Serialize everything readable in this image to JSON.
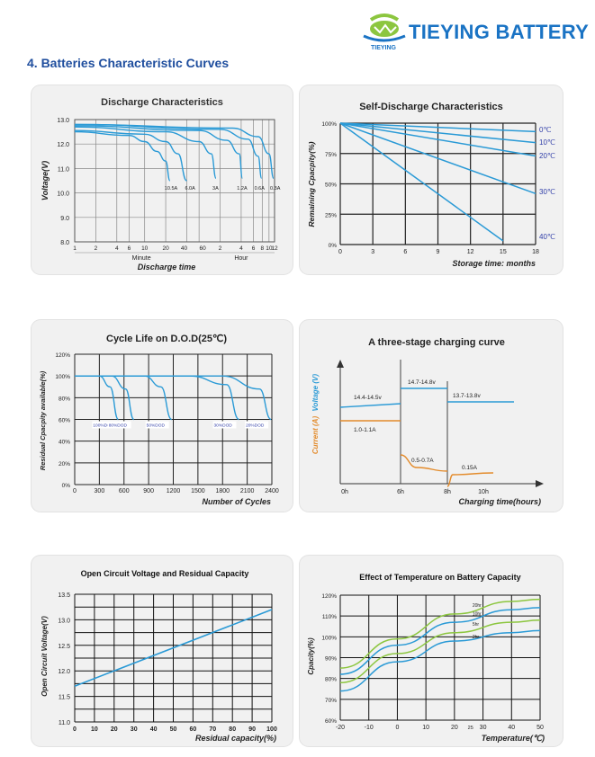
{
  "header": {
    "brand": "TIEYING BATTERY",
    "logo_text": "TIEYING",
    "section_title": "4.  Batteries Characteristic Curves"
  },
  "colors": {
    "curve": "#2a9ad6",
    "orange": "#e38b2b",
    "green": "#8cc63f",
    "grid": "#111111",
    "brand": "#1a73c4",
    "label_blue": "#2f3da8"
  },
  "chart_data": [
    {
      "type": "line",
      "title": "Discharge Characteristics",
      "xlabel": "Discharge time",
      "ylabel": "Voltage(V)",
      "ylim": [
        8.0,
        13.0
      ],
      "yticks": [
        "13.0",
        "12.0",
        "11.0",
        "10.0",
        "9.0",
        "8.0"
      ],
      "xticks": [
        "1",
        "2",
        "4",
        "6",
        "10",
        "20",
        "40",
        "60",
        "2",
        "4",
        "6",
        "8",
        "10",
        "12"
      ],
      "x_groups": [
        "Minute",
        "Hour"
      ],
      "series": [
        {
          "name": "10.5A",
          "points": [
            [
              1,
              12.5
            ],
            [
              6,
              12.35
            ],
            [
              10,
              12.1
            ],
            [
              15,
              11.7
            ],
            [
              20,
              11.3
            ],
            [
              23,
              10.5
            ]
          ]
        },
        {
          "name": "6.0A",
          "points": [
            [
              1,
              12.55
            ],
            [
              10,
              12.4
            ],
            [
              20,
              12.1
            ],
            [
              30,
              11.6
            ],
            [
              40,
              10.5
            ]
          ]
        },
        {
          "name": "3A",
          "points": [
            [
              1,
              12.7
            ],
            [
              20,
              12.5
            ],
            [
              60,
              12.1
            ],
            [
              90,
              11.6
            ],
            [
              105,
              10.6
            ]
          ]
        },
        {
          "name": "1.2A",
          "points": [
            [
              1,
              12.75
            ],
            [
              60,
              12.55
            ],
            [
              150,
              12.15
            ],
            [
              225,
              11.6
            ],
            [
              250,
              10.6
            ]
          ]
        },
        {
          "name": "0.6A",
          "points": [
            [
              1,
              12.8
            ],
            [
              120,
              12.6
            ],
            [
              300,
              12.2
            ],
            [
              420,
              11.5
            ],
            [
              470,
              10.6
            ]
          ]
        },
        {
          "name": "0.3A",
          "points": [
            [
              1,
              12.8
            ],
            [
              180,
              12.65
            ],
            [
              420,
              12.3
            ],
            [
              600,
              11.6
            ],
            [
              700,
              10.6
            ]
          ]
        }
      ],
      "annotations": [
        "10.5A",
        "6.0A",
        "3A",
        "1.2A",
        "0.6A",
        "0.3A"
      ]
    },
    {
      "type": "line",
      "title": "Self-Discharge Characteristics",
      "xlabel": "Storage time: months",
      "ylabel": "Remaining Cpacpity(%)",
      "xlim": [
        0,
        18
      ],
      "ylim": [
        0,
        100
      ],
      "yticks": [
        "100%",
        "75%",
        "50%",
        "25%",
        "0%"
      ],
      "xticks": [
        "0",
        "3",
        "6",
        "9",
        "12",
        "15",
        "18"
      ],
      "series": [
        {
          "name": "0℃",
          "points": [
            [
              0,
              100
            ],
            [
              18,
              93
            ]
          ]
        },
        {
          "name": "10℃",
          "points": [
            [
              0,
              100
            ],
            [
              18,
              84
            ]
          ]
        },
        {
          "name": "20℃",
          "points": [
            [
              0,
              100
            ],
            [
              18,
              73
            ]
          ]
        },
        {
          "name": "30℃",
          "points": [
            [
              0,
              100
            ],
            [
              18,
              42
            ]
          ]
        },
        {
          "name": "40℃",
          "points": [
            [
              0,
              100
            ],
            [
              15,
              3
            ]
          ]
        }
      ]
    },
    {
      "type": "line",
      "title": "Cycle Life on D.O.D(25℃)",
      "xlabel": "Number of Cycles",
      "ylabel": "Residual Cpacpity available(%)",
      "xlim": [
        0,
        2400
      ],
      "ylim": [
        0,
        120
      ],
      "yticks": [
        "120%",
        "100%",
        "80%",
        "60%",
        "40%",
        "20%",
        "0%"
      ],
      "xticks": [
        "0",
        "300",
        "600",
        "900",
        "1200",
        "1500",
        "1800",
        "2100",
        "2400"
      ],
      "series": [
        {
          "name": "100%DOD",
          "points": [
            [
              0,
              100
            ],
            [
              300,
              100
            ],
            [
              430,
              90
            ],
            [
              530,
              60
            ]
          ]
        },
        {
          "name": "80%DOD",
          "points": [
            [
              0,
              100
            ],
            [
              450,
              100
            ],
            [
              620,
              88
            ],
            [
              720,
              60
            ]
          ]
        },
        {
          "name": "50%DOD",
          "points": [
            [
              0,
              100
            ],
            [
              850,
              100
            ],
            [
              1050,
              90
            ],
            [
              1180,
              60
            ]
          ]
        },
        {
          "name": "30%DOD",
          "points": [
            [
              0,
              100
            ],
            [
              1400,
              100
            ],
            [
              1850,
              92
            ],
            [
              2000,
              60
            ]
          ]
        },
        {
          "name": "20%DOD",
          "points": [
            [
              0,
              100
            ],
            [
              1800,
              100
            ],
            [
              2250,
              88
            ],
            [
              2390,
              60
            ]
          ]
        }
      ]
    },
    {
      "type": "line",
      "title": "A three-stage charging curve",
      "xlabel": "Charging time(hours)",
      "ylabel_voltage": "Voltage (V)",
      "ylabel_current": "Current (A)",
      "xticks": [
        "0h",
        "6h",
        "8h",
        "10h"
      ],
      "voltage_labels": [
        "14.4-14.5v",
        "14.7-14.8v",
        "13.7-13.8v"
      ],
      "current_labels": [
        "1.0-1.1A",
        "0.5-0.7A",
        "0.15A"
      ]
    },
    {
      "type": "line",
      "title": "Open Circuit Voltage and Residual Capacity",
      "xlabel": "Residual capacity(%)",
      "ylabel": "Open Circuit Voltage(V)",
      "xlim": [
        0,
        100
      ],
      "ylim": [
        11.0,
        13.5
      ],
      "yticks": [
        "13.5",
        "13.0",
        "12.5",
        "12.0",
        "11.5",
        "11.0"
      ],
      "xticks": [
        "0",
        "10",
        "20",
        "30",
        "40",
        "50",
        "60",
        "70",
        "80",
        "90",
        "100"
      ],
      "series": [
        {
          "points": [
            [
              0,
              11.7
            ],
            [
              100,
              13.2
            ]
          ]
        }
      ]
    },
    {
      "type": "line",
      "title": "Effect of Temperature on Battery Capacity",
      "xlabel": "Temperature(℃)",
      "ylabel": "Cpacity(%)",
      "xlim": [
        -20,
        50
      ],
      "ylim": [
        60,
        120
      ],
      "yticks": [
        "120%",
        "110%",
        "100%",
        "90%",
        "80%",
        "70%",
        "60%"
      ],
      "xticks": [
        "-20",
        "-10",
        "0",
        "10",
        "20",
        "25",
        "30",
        "40",
        "50"
      ],
      "series": [
        {
          "name": "20hr",
          "points": [
            [
              -20,
              85
            ],
            [
              0,
              99
            ],
            [
              20,
              111
            ],
            [
              40,
              117
            ],
            [
              50,
              118
            ]
          ]
        },
        {
          "name": "10hr",
          "points": [
            [
              -20,
              82
            ],
            [
              0,
              96
            ],
            [
              20,
              107
            ],
            [
              40,
              113
            ],
            [
              50,
              114
            ]
          ]
        },
        {
          "name": "5hr",
          "points": [
            [
              -20,
              78
            ],
            [
              0,
              92
            ],
            [
              20,
              102
            ],
            [
              40,
              107
            ],
            [
              50,
              108
            ]
          ]
        },
        {
          "name": "2hr",
          "points": [
            [
              -20,
              74
            ],
            [
              0,
              88
            ],
            [
              20,
              98
            ],
            [
              40,
              102
            ],
            [
              50,
              103
            ]
          ]
        }
      ]
    }
  ]
}
